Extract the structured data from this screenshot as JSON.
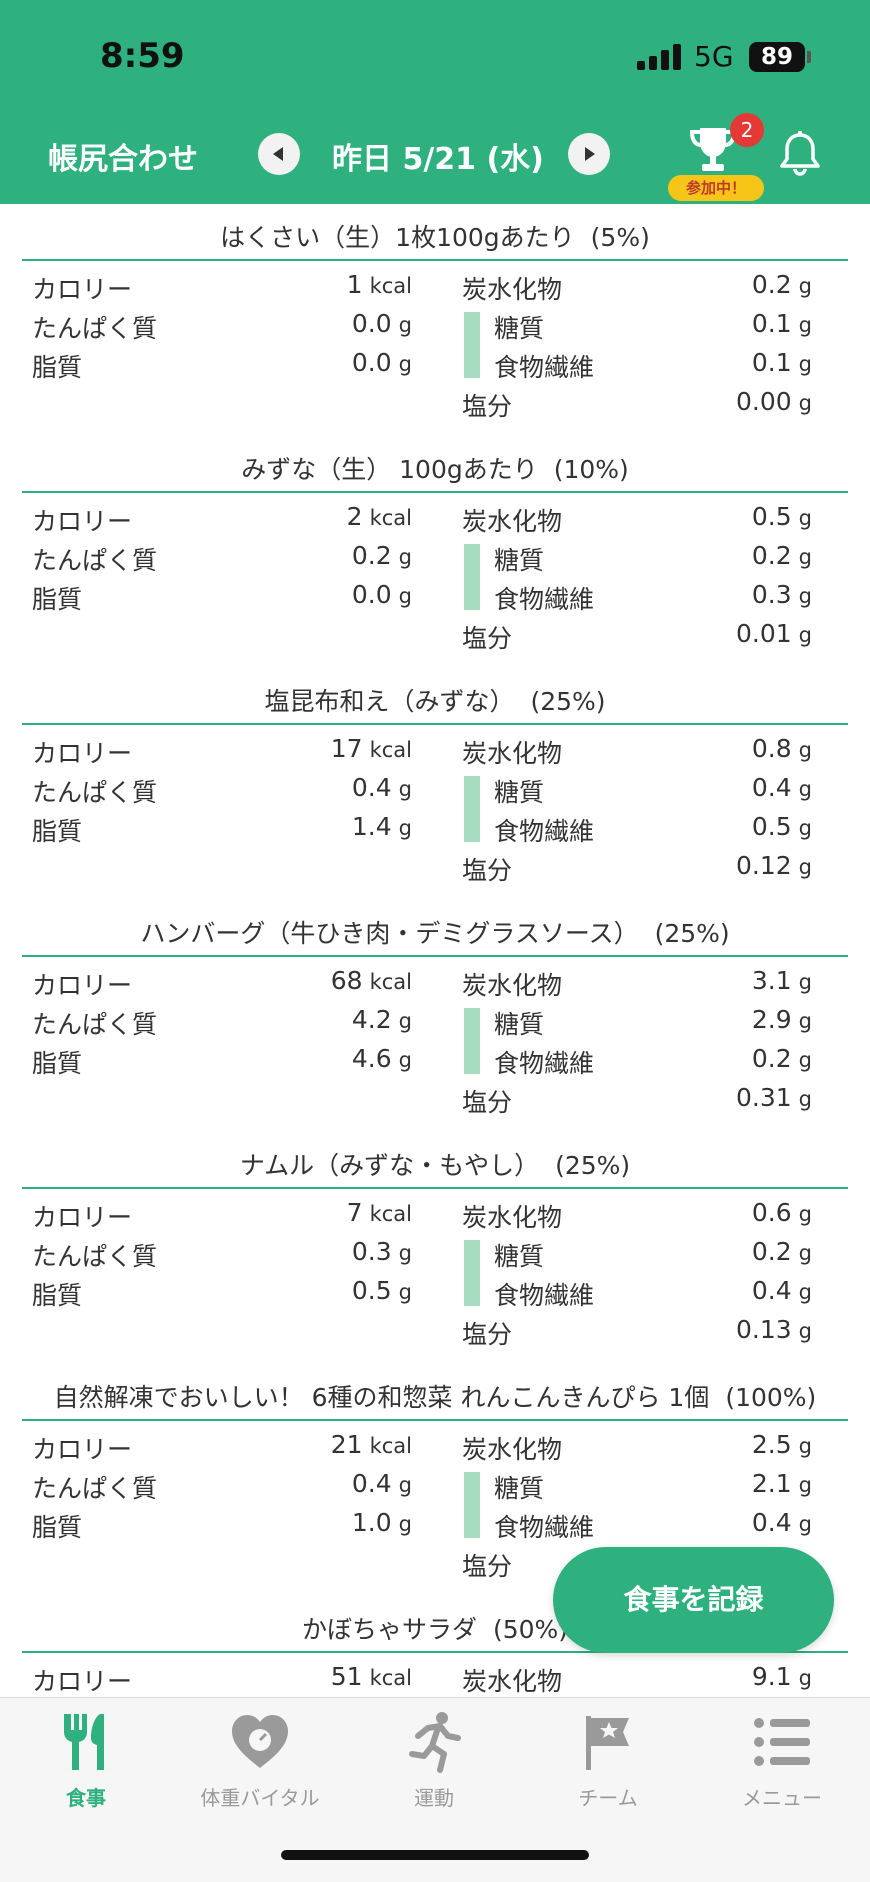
{
  "status_bar": {
    "time": "8:59",
    "network": "5G",
    "battery": "89"
  },
  "header": {
    "title": "帳尻合わせ",
    "date_label": "昨日 5/21 (水)",
    "trophy_badge": "2",
    "join_chip": "参加中！"
  },
  "labels": {
    "calorie": "カロリー",
    "protein": "たんぱく質",
    "fat": "脂質",
    "carb": "炭水化物",
    "sugar": "糖質",
    "fiber": "食物繊維",
    "salt": "塩分",
    "kcal": "kcal",
    "g": "g"
  },
  "foods": [
    {
      "name": "はくさい（生）1枚100gあたり",
      "pct": "(5%)",
      "calorie": "1",
      "protein": "0.0",
      "fat": "0.0",
      "carb": "0.2",
      "sugar": "0.1",
      "fiber": "0.1",
      "salt": "0.00"
    },
    {
      "name": "みずな（生） 100gあたり",
      "pct": "(10%)",
      "calorie": "2",
      "protein": "0.2",
      "fat": "0.0",
      "carb": "0.5",
      "sugar": "0.2",
      "fiber": "0.3",
      "salt": "0.01"
    },
    {
      "name": "塩昆布和え（みずな）",
      "pct": "(25%)",
      "calorie": "17",
      "protein": "0.4",
      "fat": "1.4",
      "carb": "0.8",
      "sugar": "0.4",
      "fiber": "0.5",
      "salt": "0.12"
    },
    {
      "name": "ハンバーグ（牛ひき肉・デミグラスソース）",
      "pct": "(25%)",
      "calorie": "68",
      "protein": "4.2",
      "fat": "4.6",
      "carb": "3.1",
      "sugar": "2.9",
      "fiber": "0.2",
      "salt": "0.31"
    },
    {
      "name": "ナムル（みずな・もやし）",
      "pct": "(25%)",
      "calorie": "7",
      "protein": "0.3",
      "fat": "0.5",
      "carb": "0.6",
      "sugar": "0.2",
      "fiber": "0.4",
      "salt": "0.13"
    },
    {
      "name": "自然解凍でおいしい！ 6種の和惣菜 れんこんきんぴら 1個",
      "pct": "(100%)",
      "calorie": "21",
      "protein": "0.4",
      "fat": "1.0",
      "carb": "2.5",
      "sugar": "2.1",
      "fiber": "0.4",
      "salt": ""
    },
    {
      "name": "かぼちゃサラダ",
      "pct": "(50%)",
      "calorie": "51",
      "carb": "9.1"
    }
  ],
  "fab_label": "食事を記録",
  "tabs": [
    {
      "label": "食事",
      "icon": "fork-knife-icon",
      "active": true
    },
    {
      "label": "体重バイタル",
      "icon": "heart-scale-icon",
      "active": false
    },
    {
      "label": "運動",
      "icon": "runner-icon",
      "active": false
    },
    {
      "label": "チーム",
      "icon": "flag-star-icon",
      "active": false
    },
    {
      "label": "メニュー",
      "icon": "menu-list-icon",
      "active": false
    }
  ],
  "colors": {
    "brand_green": "#2eb07f",
    "sub_bar": "#a8dcc0",
    "badge_red": "#e53935",
    "chip_yellow": "#f5c518"
  }
}
